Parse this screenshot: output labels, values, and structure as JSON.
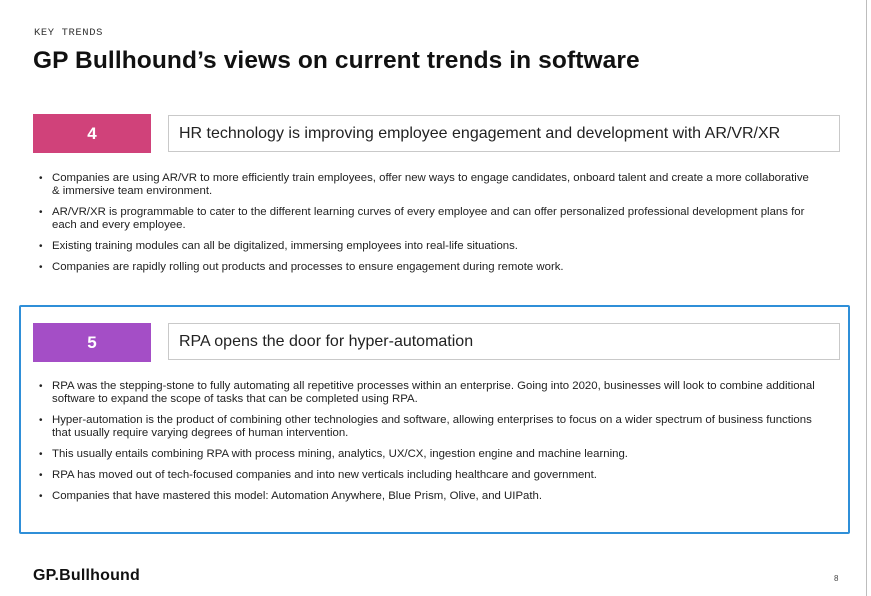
{
  "header": {
    "kicker": "KEY TRENDS",
    "title": "GP Bullhound’s views on current trends in software"
  },
  "sections": [
    {
      "number": "4",
      "heading": "HR technology is improving employee engagement and development with AR/VR/XR",
      "color": "#d0427a",
      "bullets": [
        "Companies are using AR/VR to more efficiently train employees, offer new ways to engage candidates, onboard talent and create a more collaborative & immersive team environment.",
        "AR/VR/XR is programmable to cater to the different learning curves of every employee and can offer personalized professional development plans for each and every employee.",
        "Existing training modules can all be digitalized, immersing employees into real-life situations.",
        "Companies are rapidly rolling out products and processes to ensure engagement during remote work."
      ]
    },
    {
      "number": "5",
      "heading": "RPA opens the door for hyper-automation",
      "color": "#a44ec6",
      "bullets": [
        "RPA was the stepping-stone to fully automating all repetitive processes within an enterprise. Going into 2020, businesses will look to combine additional software to expand the scope of tasks that can be completed using RPA.",
        "Hyper-automation is the product of combining other technologies and software, allowing enterprises to focus on a wider spectrum of business functions that usually require varying degrees of human intervention.",
        "This usually entails combining RPA with process mining, analytics, UX/CX, ingestion engine and machine learning.",
        "RPA has moved out of tech-focused companies and into new verticals including healthcare and government.",
        "Companies that have mastered this model: Automation Anywhere, Blue Prism, Olive, and UIPath."
      ]
    }
  ],
  "highlight_color": "#2f8fd8",
  "footer": {
    "logo": "GP.Bullhound",
    "page_number": "8"
  }
}
